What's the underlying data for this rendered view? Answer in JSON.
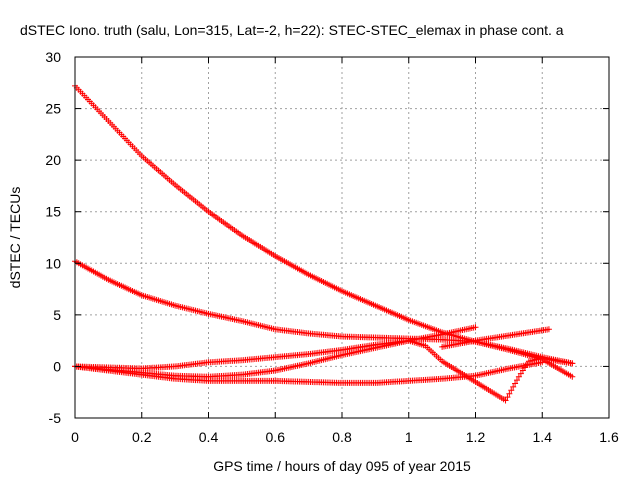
{
  "chart_data": {
    "type": "scatter",
    "title": "dSTEC Iono. truth (salu, Lon=315, Lat=-2, h=22): STEC-STEC_elemax in phase cont. a",
    "xlabel": "GPS time / hours of day 095 of year 2015",
    "ylabel": "dSTEC  / TECUs",
    "xlim": [
      0,
      1.6
    ],
    "ylim": [
      -5,
      30
    ],
    "xticks": [
      0,
      0.2,
      0.4,
      0.6,
      0.8,
      1,
      1.2,
      1.4,
      1.6
    ],
    "xtick_labels": [
      "0",
      "0.2",
      "0.4",
      "0.6",
      "0.8",
      "1",
      "1.2",
      "1.4",
      "1.6"
    ],
    "yticks": [
      -5,
      0,
      5,
      10,
      15,
      20,
      25,
      30
    ],
    "ytick_labels": [
      "-5",
      "0",
      "5",
      "10",
      "15",
      "20",
      "25",
      "30"
    ],
    "grid": true,
    "marker": "+",
    "color": "#ff0000",
    "series": [
      {
        "x": [
          0,
          0.1,
          0.2,
          0.3,
          0.4,
          0.5,
          0.6,
          0.7,
          0.8,
          0.9,
          1.0,
          1.1,
          1.2,
          1.3,
          1.4,
          1.49
        ],
        "y": [
          27.2,
          23.8,
          20.4,
          17.6,
          15.0,
          12.7,
          10.7,
          8.9,
          7.3,
          5.9,
          4.5,
          3.3,
          2.4,
          1.6,
          0.7,
          -1.0
        ]
      },
      {
        "x": [
          0,
          0.1,
          0.2,
          0.3,
          0.4,
          0.5,
          0.6,
          0.7,
          0.8,
          0.9,
          1.0,
          1.1,
          1.2,
          1.3,
          1.4,
          1.49
        ],
        "y": [
          10.2,
          8.4,
          6.9,
          5.9,
          5.1,
          4.4,
          3.6,
          3.2,
          2.9,
          2.8,
          2.7,
          2.6,
          2.4,
          1.7,
          0.9,
          0.3
        ]
      },
      {
        "x": [
          0,
          0.1,
          0.2,
          0.3,
          0.4,
          0.5,
          0.6,
          0.7,
          0.8,
          0.9,
          1.0,
          1.05,
          1.1,
          1.15,
          1.2,
          1.25,
          1.29,
          1.33,
          1.36,
          1.4,
          1.45,
          1.49
        ],
        "y": [
          0.0,
          -0.1,
          -0.2,
          0.0,
          0.4,
          0.6,
          0.9,
          1.2,
          1.6,
          2.1,
          2.5,
          2.0,
          0.5,
          -0.5,
          -1.5,
          -2.5,
          -3.3,
          -1.0,
          0.5,
          0.8,
          0.5,
          0.3
        ]
      },
      {
        "x": [
          0,
          0.1,
          0.2,
          0.3,
          0.4,
          0.5,
          0.6,
          0.7,
          0.8,
          0.9,
          1.0,
          1.1,
          1.2
        ],
        "y": [
          0.0,
          -0.3,
          -0.6,
          -0.9,
          -1.0,
          -0.8,
          -0.4,
          0.3,
          1.1,
          1.8,
          2.5,
          3.1,
          3.8
        ]
      },
      {
        "x": [
          0,
          0.1,
          0.2,
          0.3,
          0.4,
          0.5,
          0.6,
          0.7,
          0.8,
          0.9,
          1.0,
          1.1,
          1.2,
          1.3,
          1.4
        ],
        "y": [
          0.0,
          -0.4,
          -0.8,
          -1.2,
          -1.4,
          -1.4,
          -1.4,
          -1.5,
          -1.6,
          -1.6,
          -1.4,
          -1.2,
          -0.9,
          -0.2,
          0.4
        ]
      },
      {
        "x": [
          1.1,
          1.2,
          1.3,
          1.42
        ],
        "y": [
          1.9,
          2.5,
          3.0,
          3.6
        ]
      }
    ]
  }
}
